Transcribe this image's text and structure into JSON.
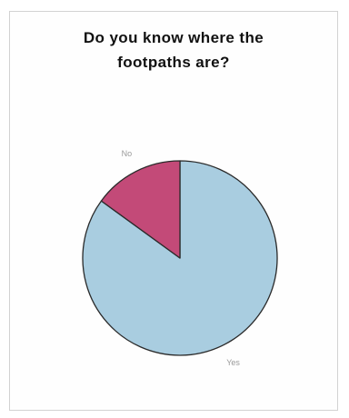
{
  "chart_data": {
    "type": "pie",
    "title_lines": [
      "Do you know where the",
      "footpaths are?"
    ],
    "categories": [
      "Yes",
      "No"
    ],
    "values": [
      85,
      15
    ],
    "colors": [
      "#a9cde0",
      "#c34a78"
    ],
    "legend": false
  }
}
